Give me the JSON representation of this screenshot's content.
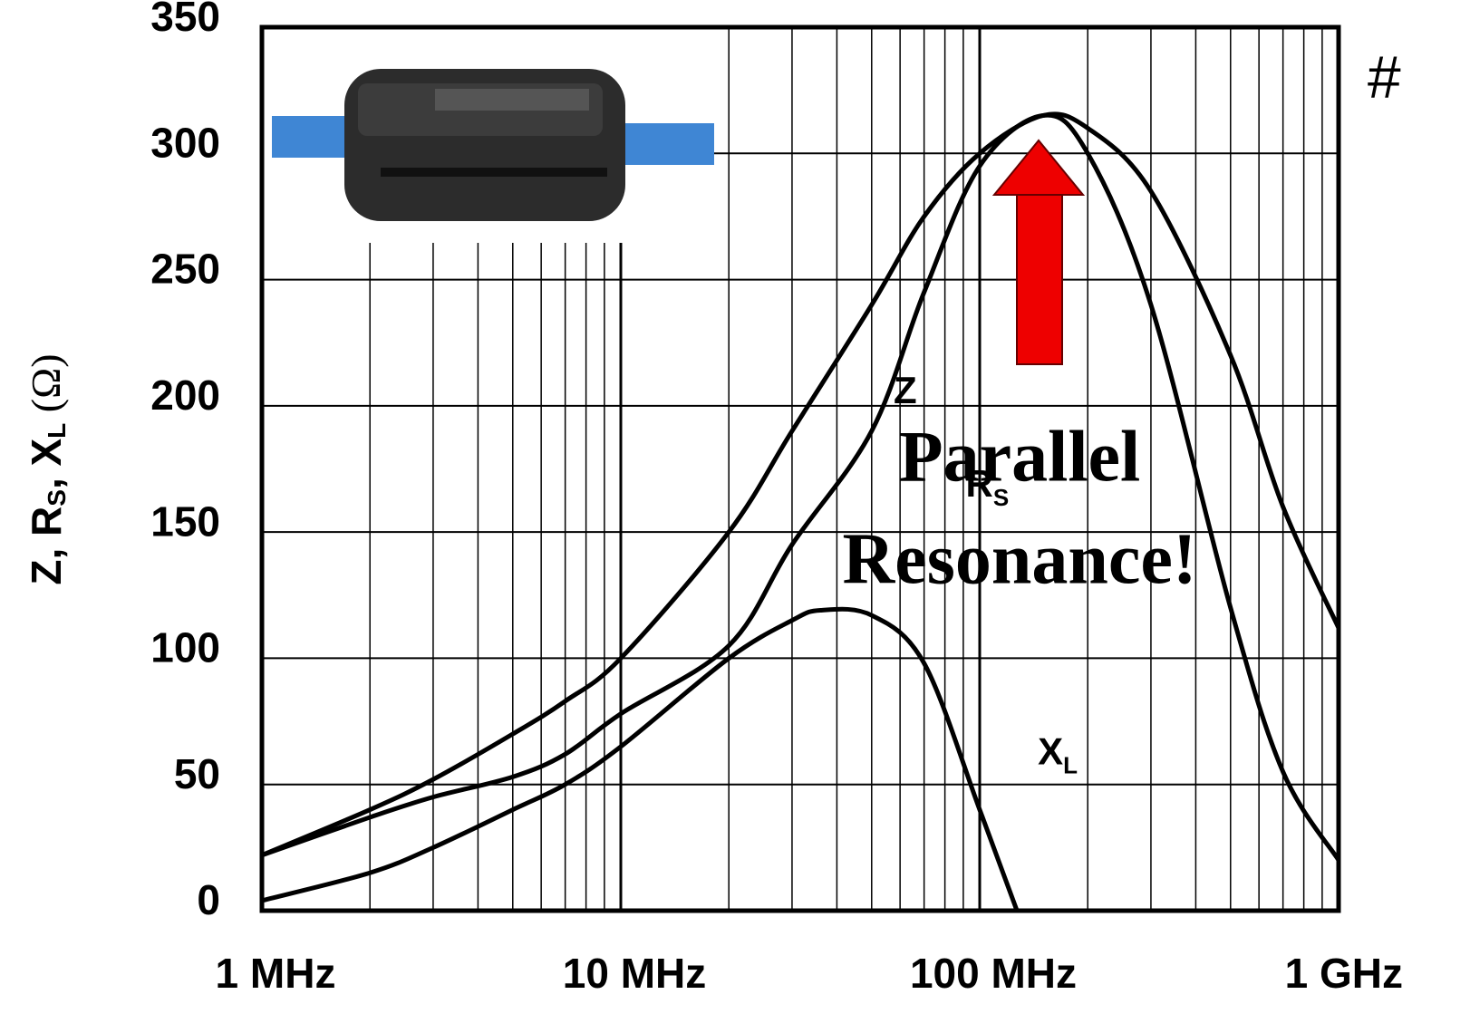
{
  "chart_data": {
    "type": "line",
    "ylabel": [
      "Z, R",
      "S",
      ", X",
      "L",
      " (Ω)"
    ],
    "xscale": "log",
    "xlim": [
      1,
      1000
    ],
    "ylim": [
      0,
      350
    ],
    "xticks": [
      {
        "value": 1,
        "label": "1 MHz"
      },
      {
        "value": 10,
        "label": "10 MHz"
      },
      {
        "value": 100,
        "label": "100 MHz"
      },
      {
        "value": 1000,
        "label": "1 GHz"
      }
    ],
    "x_minor_ticks": [
      2,
      3,
      4,
      5,
      6,
      7,
      8,
      9,
      20,
      30,
      40,
      50,
      60,
      70,
      80,
      90,
      200,
      300,
      400,
      500,
      600,
      700,
      800,
      900
    ],
    "yticks": [
      0,
      50,
      100,
      150,
      200,
      250,
      300,
      350
    ],
    "grid": true,
    "series": [
      {
        "name": "Z",
        "color": "#000000",
        "label_at": [
          62,
          205
        ],
        "x": [
          1,
          2,
          3,
          5,
          7,
          10,
          20,
          30,
          50,
          70,
          100,
          150,
          200,
          300,
          500,
          700,
          1000
        ],
        "values": [
          22,
          40,
          52,
          70,
          83,
          100,
          150,
          190,
          240,
          275,
          300,
          315,
          310,
          285,
          220,
          160,
          112
        ]
      },
      {
        "name": "R",
        "subscript": "S",
        "color": "#000000",
        "label_at": [
          105,
          168
        ],
        "x": [
          1,
          2,
          3,
          5,
          7,
          10,
          20,
          30,
          50,
          70,
          100,
          150,
          200,
          300,
          500,
          700,
          1000
        ],
        "values": [
          22,
          37,
          45,
          53,
          62,
          78,
          105,
          145,
          190,
          245,
          295,
          315,
          300,
          240,
          120,
          55,
          20
        ]
      },
      {
        "name": "X",
        "subscript": "L",
        "color": "#000000",
        "label_at": [
          165,
          62
        ],
        "x": [
          1,
          2,
          3,
          5,
          7,
          10,
          20,
          30,
          36,
          50,
          70,
          100,
          127
        ],
        "values": [
          4,
          15,
          25,
          40,
          50,
          65,
          100,
          115,
          119,
          117,
          98,
          40,
          0
        ]
      }
    ],
    "annotations": [
      {
        "text": "Parallel",
        "color": "#ee0000"
      },
      {
        "text": "Resonance!",
        "color": "#ee0000"
      }
    ],
    "corner_text": "#"
  }
}
